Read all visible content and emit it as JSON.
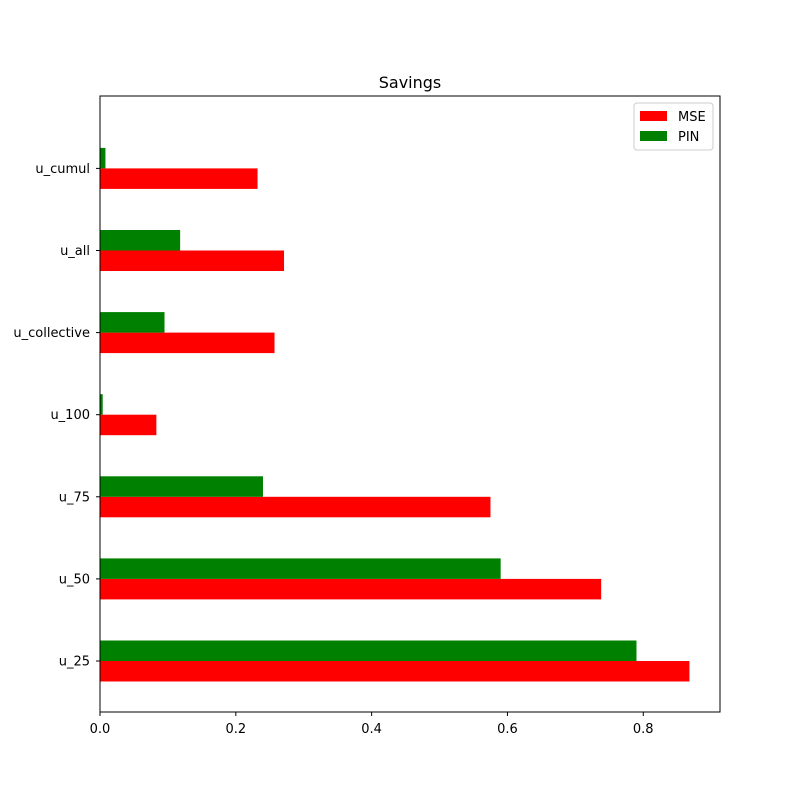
{
  "chart_data": {
    "type": "bar",
    "orientation": "horizontal",
    "title": "Savings",
    "xlabel": "",
    "ylabel": "",
    "categories": [
      "u_25",
      "u_50",
      "u_75",
      "u_100",
      "u_collective",
      "u_all",
      "u_cumul"
    ],
    "series": [
      {
        "name": "MSE",
        "color": "#ff0000",
        "values": [
          0.868,
          0.738,
          0.575,
          0.083,
          0.257,
          0.271,
          0.232
        ]
      },
      {
        "name": "PIN",
        "color": "#008000",
        "values": [
          0.79,
          0.59,
          0.24,
          0.004,
          0.095,
          0.118,
          0.008
        ]
      }
    ],
    "xlim": [
      0,
      0.913
    ],
    "xticks": [
      0.0,
      0.2,
      0.4,
      0.6,
      0.8
    ],
    "xtick_labels": [
      "0.0",
      "0.2",
      "0.4",
      "0.6",
      "0.8"
    ],
    "grid": false,
    "legend": {
      "position": "top-right"
    }
  }
}
